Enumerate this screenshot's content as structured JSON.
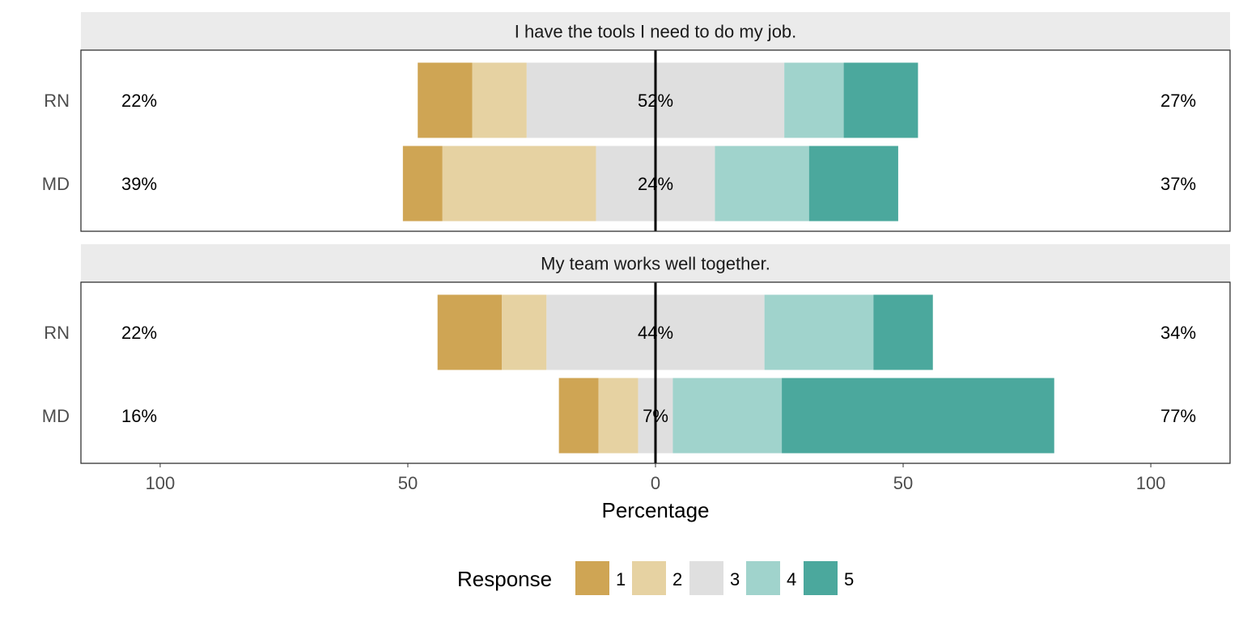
{
  "chart_data": {
    "type": "bar",
    "orientation": "horizontal-diverging",
    "xlabel": "Percentage",
    "x_ticks": [
      -100,
      -50,
      0,
      50,
      100
    ],
    "x_tick_labels": [
      "100",
      "50",
      "0",
      "50",
      "100"
    ],
    "xlim": [
      -116,
      116
    ],
    "legend": {
      "title": "Response",
      "placement": "bottom",
      "levels": [
        "1",
        "2",
        "3",
        "4",
        "5"
      ],
      "colors": [
        "#CFA554",
        "#E6D2A2",
        "#DFDFDF",
        "#A0D3CC",
        "#4BA89D"
      ]
    },
    "panels": [
      {
        "title": "I have the tools I need to do my job.",
        "rows": [
          {
            "group": "RN",
            "values": [
              11,
              11,
              52,
              12,
              15
            ],
            "low_label": "22%",
            "neutral_label": "52%",
            "high_label": "27%"
          },
          {
            "group": "MD",
            "values": [
              8,
              31,
              24,
              19,
              18
            ],
            "low_label": "39%",
            "neutral_label": "24%",
            "high_label": "37%"
          }
        ]
      },
      {
        "title": "My team works well together.",
        "rows": [
          {
            "group": "RN",
            "values": [
              13,
              9,
              44,
              22,
              12
            ],
            "low_label": "22%",
            "neutral_label": "44%",
            "high_label": "34%"
          },
          {
            "group": "MD",
            "values": [
              8,
              8,
              7,
              22,
              55
            ],
            "low_label": "16%",
            "neutral_label": "7%",
            "high_label": "77%"
          }
        ]
      }
    ]
  }
}
